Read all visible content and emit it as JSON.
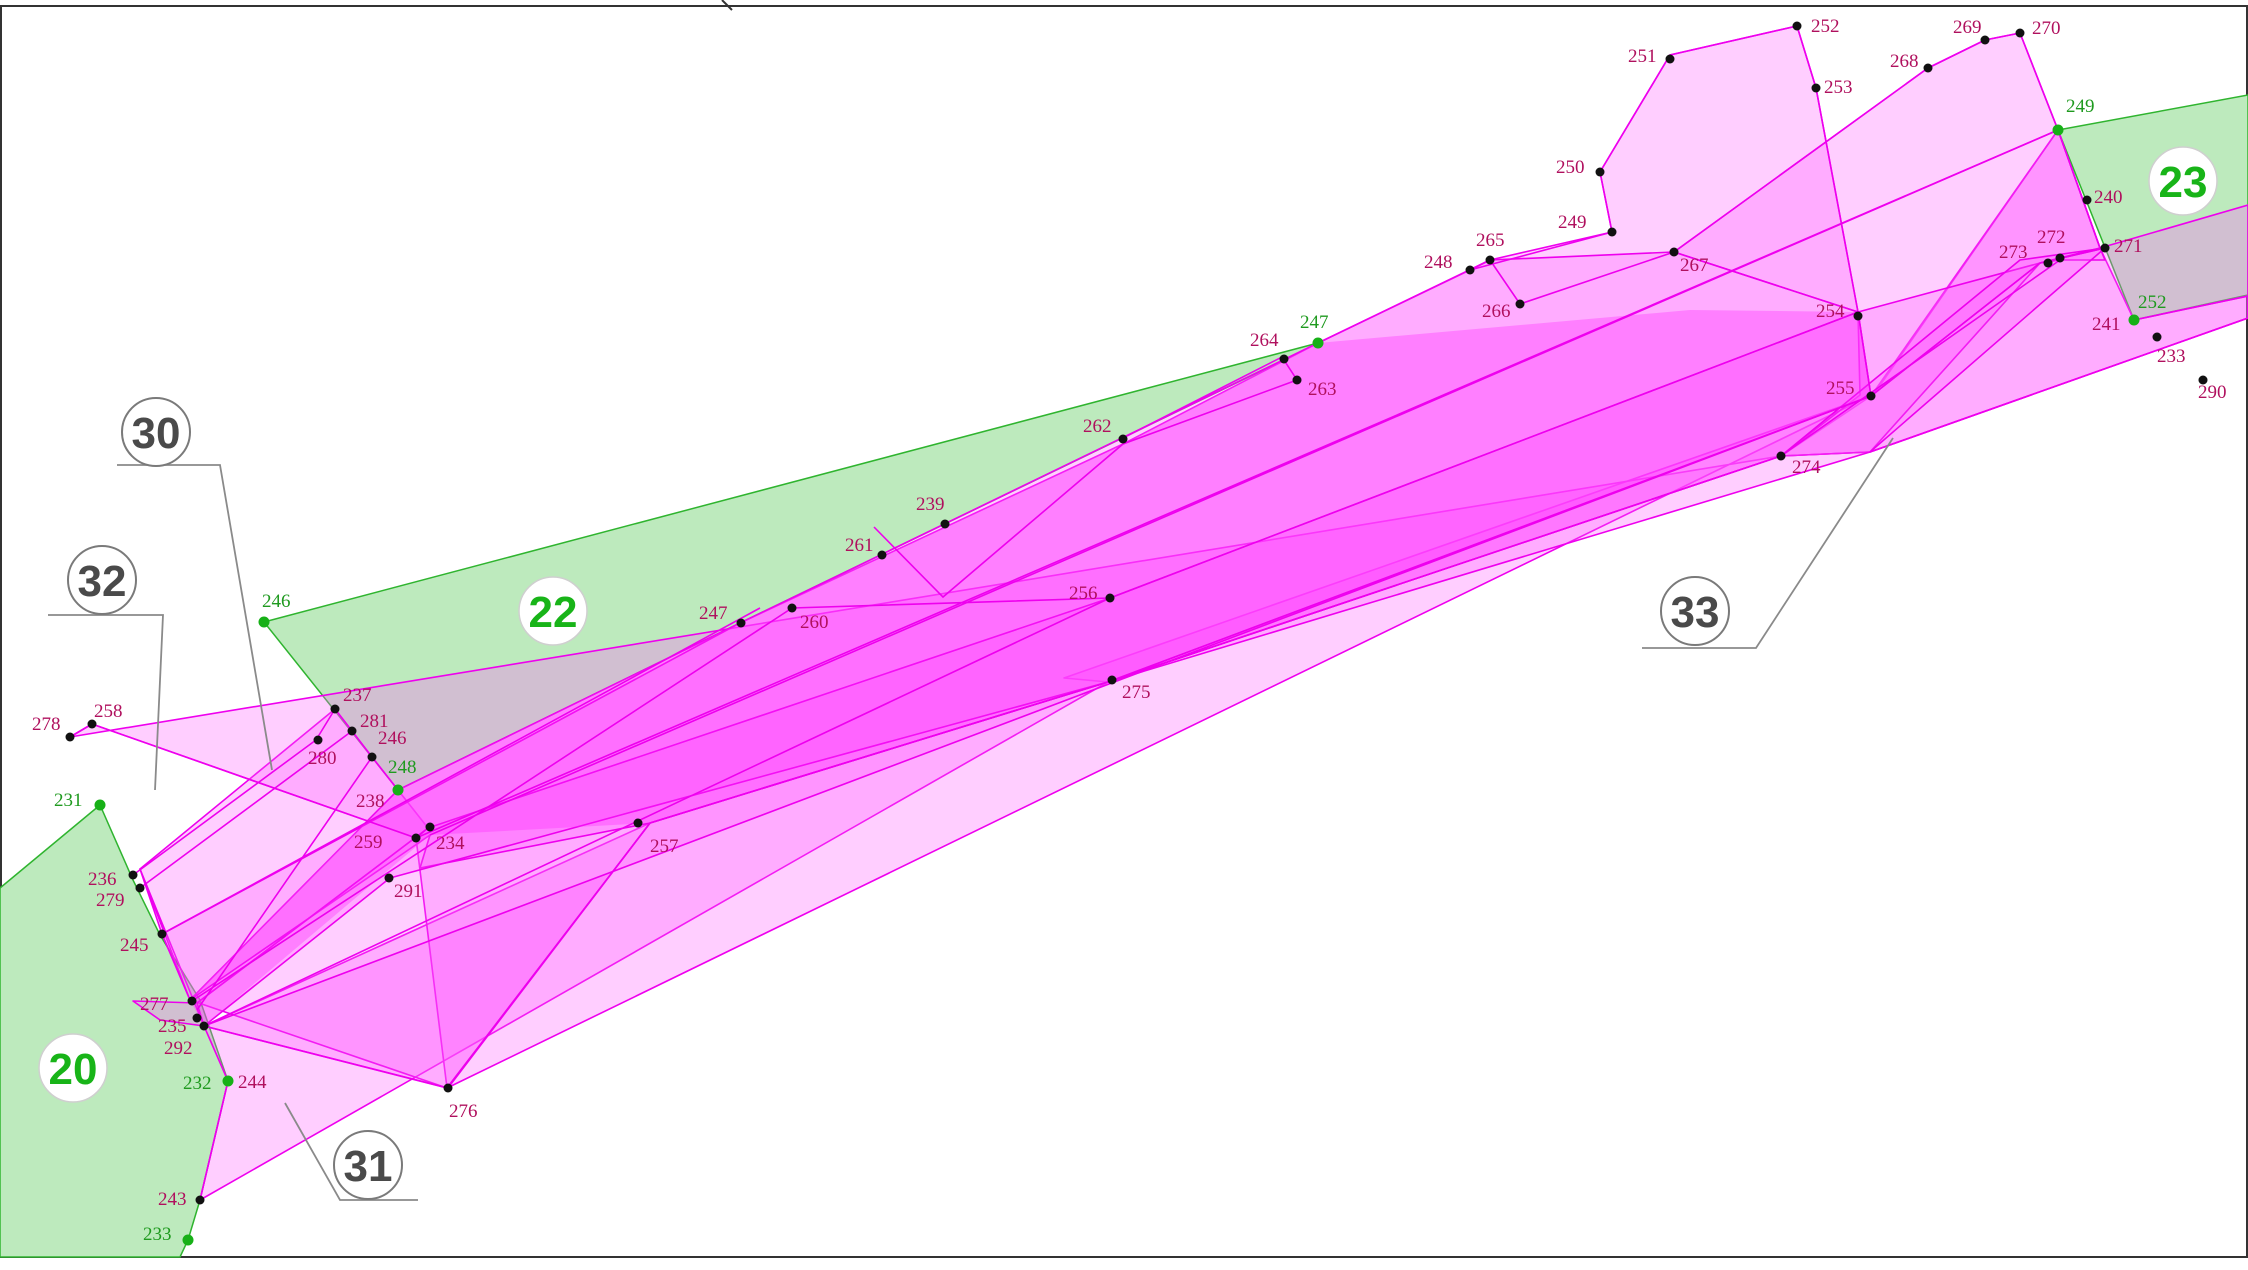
{
  "zones": [
    {
      "id": "20",
      "label": "20"
    },
    {
      "id": "22",
      "label": "22"
    },
    {
      "id": "23",
      "label": "23"
    }
  ],
  "callouts": [
    {
      "id": "30",
      "label": "30"
    },
    {
      "id": "31",
      "label": "31"
    },
    {
      "id": "32",
      "label": "32"
    },
    {
      "id": "33",
      "label": "33"
    }
  ],
  "points_magenta": [
    "252",
    "251",
    "253",
    "269",
    "270",
    "268",
    "250",
    "249",
    "265",
    "248",
    "267",
    "266",
    "273",
    "272",
    "271",
    "240",
    "254",
    "241",
    "233",
    "290",
    "255",
    "274",
    "264",
    "263",
    "262",
    "239",
    "261",
    "256",
    "247",
    "260",
    "275",
    "237",
    "281",
    "246",
    "280",
    "238",
    "259",
    "234",
    "257",
    "291",
    "278",
    "258",
    "236",
    "279",
    "245",
    "277",
    "235",
    "292",
    "244",
    "276",
    "243"
  ],
  "points_green": [
    "249",
    "252",
    "247",
    "246",
    "248",
    "231",
    "232",
    "233"
  ],
  "colors": {
    "green_fill": "#bdeabd",
    "green_stroke": "#2fb42f",
    "magenta_fill": "#ff5cff",
    "magenta_stroke": "#ee00ee",
    "label_magenta": "#b0105e",
    "label_green": "#1f9a1f"
  }
}
